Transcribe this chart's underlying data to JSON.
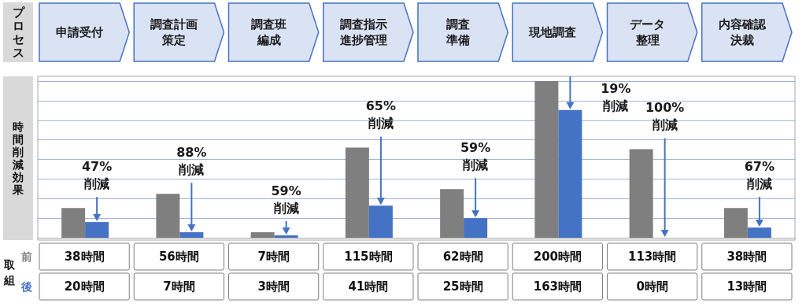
{
  "chart_data": {
    "type": "bar",
    "xlabel": "プロセス",
    "ylabel": "時間削減効果",
    "legend_title": "取組",
    "categories": [
      "申請受付",
      "調査計画策定",
      "調査班編成",
      "調査指示進捗管理",
      "調査準備",
      "現地調査",
      "データ整理",
      "内容確認決裁"
    ],
    "series": [
      {
        "name": "前",
        "color": "#7f7f7f",
        "values": [
          38,
          56,
          7,
          115,
          62,
          200,
          113,
          38
        ],
        "value_labels": [
          "38時間",
          "56時間",
          "7時間",
          "115時間",
          "62時間",
          "200時間",
          "113時間",
          "38時間"
        ]
      },
      {
        "name": "後",
        "color": "#4472c4",
        "values": [
          20,
          7,
          3,
          41,
          25,
          163,
          0,
          13
        ],
        "value_labels": [
          "20時間",
          "7時間",
          "3時間",
          "41時間",
          "25時間",
          "163時間",
          "0時間",
          "13時間"
        ]
      }
    ],
    "annotations": [
      "47%\n削減",
      "88%\n削減",
      "59%\n削減",
      "65%\n削減",
      "59%\n削減",
      "19%\n削減",
      "100%\n削減",
      "67%\n削減"
    ],
    "ylim": [
      0,
      200
    ],
    "yticks": [
      {
        "value": 0,
        "label": null
      },
      {
        "value": 25,
        "label": null
      },
      {
        "value": 50,
        "label": null
      },
      {
        "value": 75,
        "label": null
      },
      {
        "value": 100,
        "label": null
      },
      {
        "value": 125,
        "label": null
      },
      {
        "value": 150,
        "label": null
      },
      {
        "value": 175,
        "label": null
      },
      {
        "value": 200,
        "label": null
      }
    ],
    "grid": "y",
    "legend": false
  }
}
